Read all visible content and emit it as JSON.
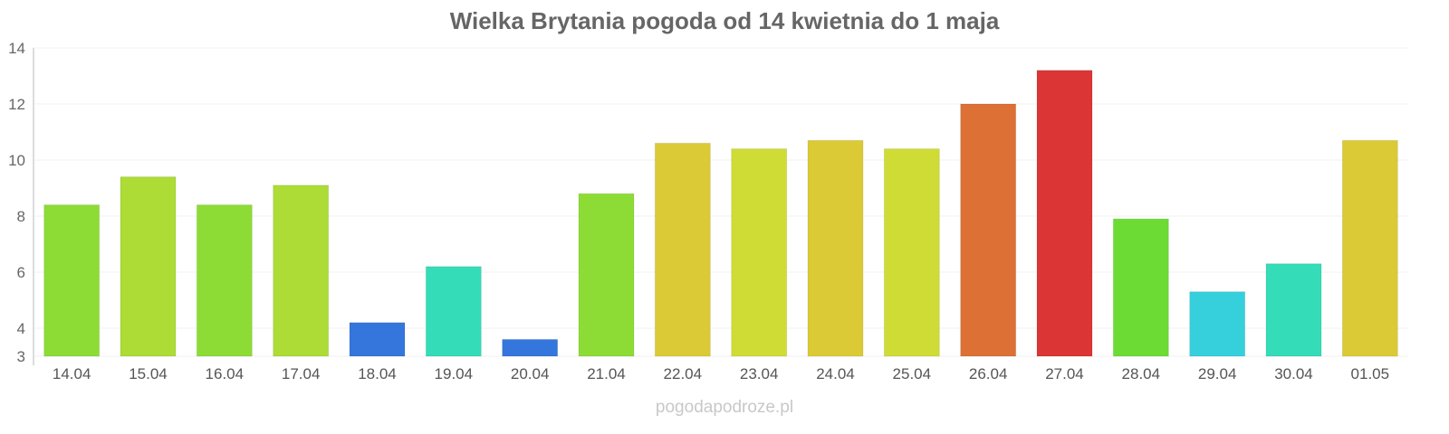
{
  "chart_data": {
    "type": "bar",
    "title": "Wielka Brytania pogoda od 14 kwietnia do 1 maja",
    "categories": [
      "14.04",
      "15.04",
      "16.04",
      "17.04",
      "18.04",
      "19.04",
      "20.04",
      "21.04",
      "22.04",
      "23.04",
      "24.04",
      "25.04",
      "26.04",
      "27.04",
      "28.04",
      "29.04",
      "30.04",
      "01.05"
    ],
    "values": [
      8.4,
      9.4,
      8.4,
      9.1,
      4.2,
      6.2,
      3.6,
      8.8,
      10.6,
      10.4,
      10.7,
      10.4,
      12.0,
      13.2,
      7.9,
      5.3,
      6.3,
      10.7
    ],
    "colors": [
      "#8ddc35",
      "#acdc35",
      "#8ddc35",
      "#acdc35",
      "#3476dc",
      "#35dcb8",
      "#3476dc",
      "#8ddc35",
      "#dbca35",
      "#cfdc35",
      "#dbca35",
      "#cfdc35",
      "#dc7035",
      "#dc3535",
      "#6cdc35",
      "#35d0dc",
      "#35dcb8",
      "#dbca35"
    ],
    "ylim": [
      3,
      14
    ],
    "yticks": [
      3,
      4,
      6,
      8,
      10,
      12,
      14
    ],
    "xlabel": "",
    "ylabel": "",
    "grid": true
  },
  "watermark": "pogodapodroze.pl"
}
